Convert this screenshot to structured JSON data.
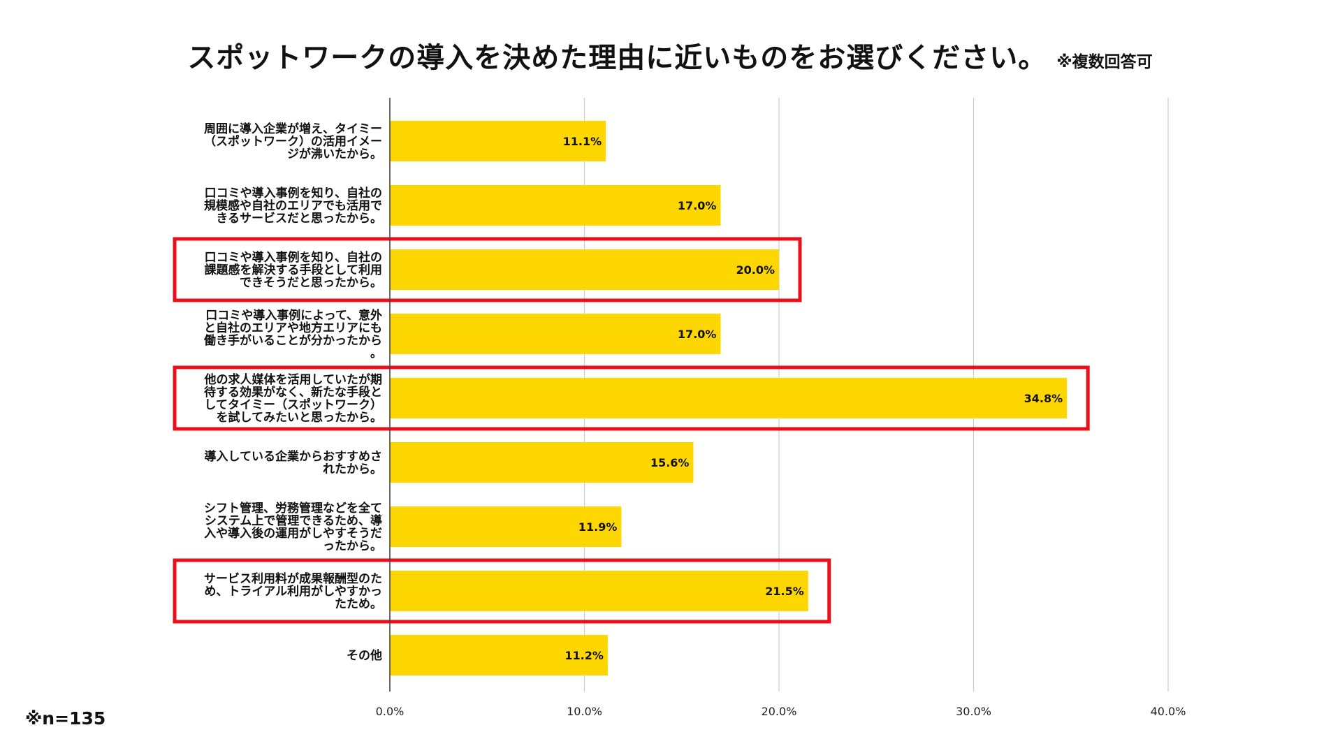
{
  "title": "スポットワークの導入を決めた理由に近いものをお選びください。",
  "title_note": "※複数回答可",
  "sample_note": "※n=135",
  "colors": {
    "bar": "#FFD700",
    "highlight_box": "#E8111A",
    "grid": "#CCCCCC",
    "axis": "#444444"
  },
  "chart_data": {
    "type": "bar",
    "orientation": "horizontal",
    "title": "スポットワークの導入を決めた理由に近いものをお選びください。",
    "xlabel": "",
    "ylabel": "",
    "xlim": [
      0,
      40
    ],
    "ticks": [
      "0.0%",
      "10.0%",
      "20.0%",
      "30.0%",
      "40.0%"
    ],
    "tick_values": [
      0,
      10,
      20,
      30,
      40
    ],
    "grid": true,
    "legend": "none",
    "categories": [
      [
        "周囲に導入企業が増え、タイミー",
        "（スポットワーク）の活用イメー",
        "ジが沸いたから。"
      ],
      [
        "口コミや導入事例を知り、自社の",
        "規模感や自社のエリアでも活用で",
        "きるサービスだと思ったから。"
      ],
      [
        "口コミや導入事例を知り、自社の",
        "課題感を解決する手段として利用",
        "できそうだと思ったから。"
      ],
      [
        "口コミや導入事例によって、意外",
        "と自社のエリアや地方エリアにも",
        "働き手がいることが分かったから",
        "。"
      ],
      [
        "他の求人媒体を活用していたが期",
        "待する効果がなく、新たな手段と",
        "してタイミー（スポットワーク）",
        "を試してみたいと思ったから。"
      ],
      [
        "導入している企業からおすすめさ",
        "れたから。"
      ],
      [
        "シフト管理、労務管理などを全て",
        "システム上で管理できるため、導",
        "入や導入後の運用がしやすそうだ",
        "ったから。"
      ],
      [
        "サービス利用料が成果報酬型のた",
        "め、トライアル利用がしやすかっ",
        "たため。"
      ],
      [
        "その他"
      ]
    ],
    "values": [
      11.1,
      17.0,
      20.0,
      17.0,
      34.8,
      15.6,
      11.9,
      21.5,
      11.2
    ],
    "value_labels": [
      "11.1%",
      "17.0%",
      "20.0%",
      "17.0%",
      "34.8%",
      "15.6%",
      "11.9%",
      "21.5%",
      "11.2%"
    ],
    "highlighted": [
      false,
      false,
      true,
      false,
      true,
      false,
      false,
      true,
      false
    ]
  }
}
